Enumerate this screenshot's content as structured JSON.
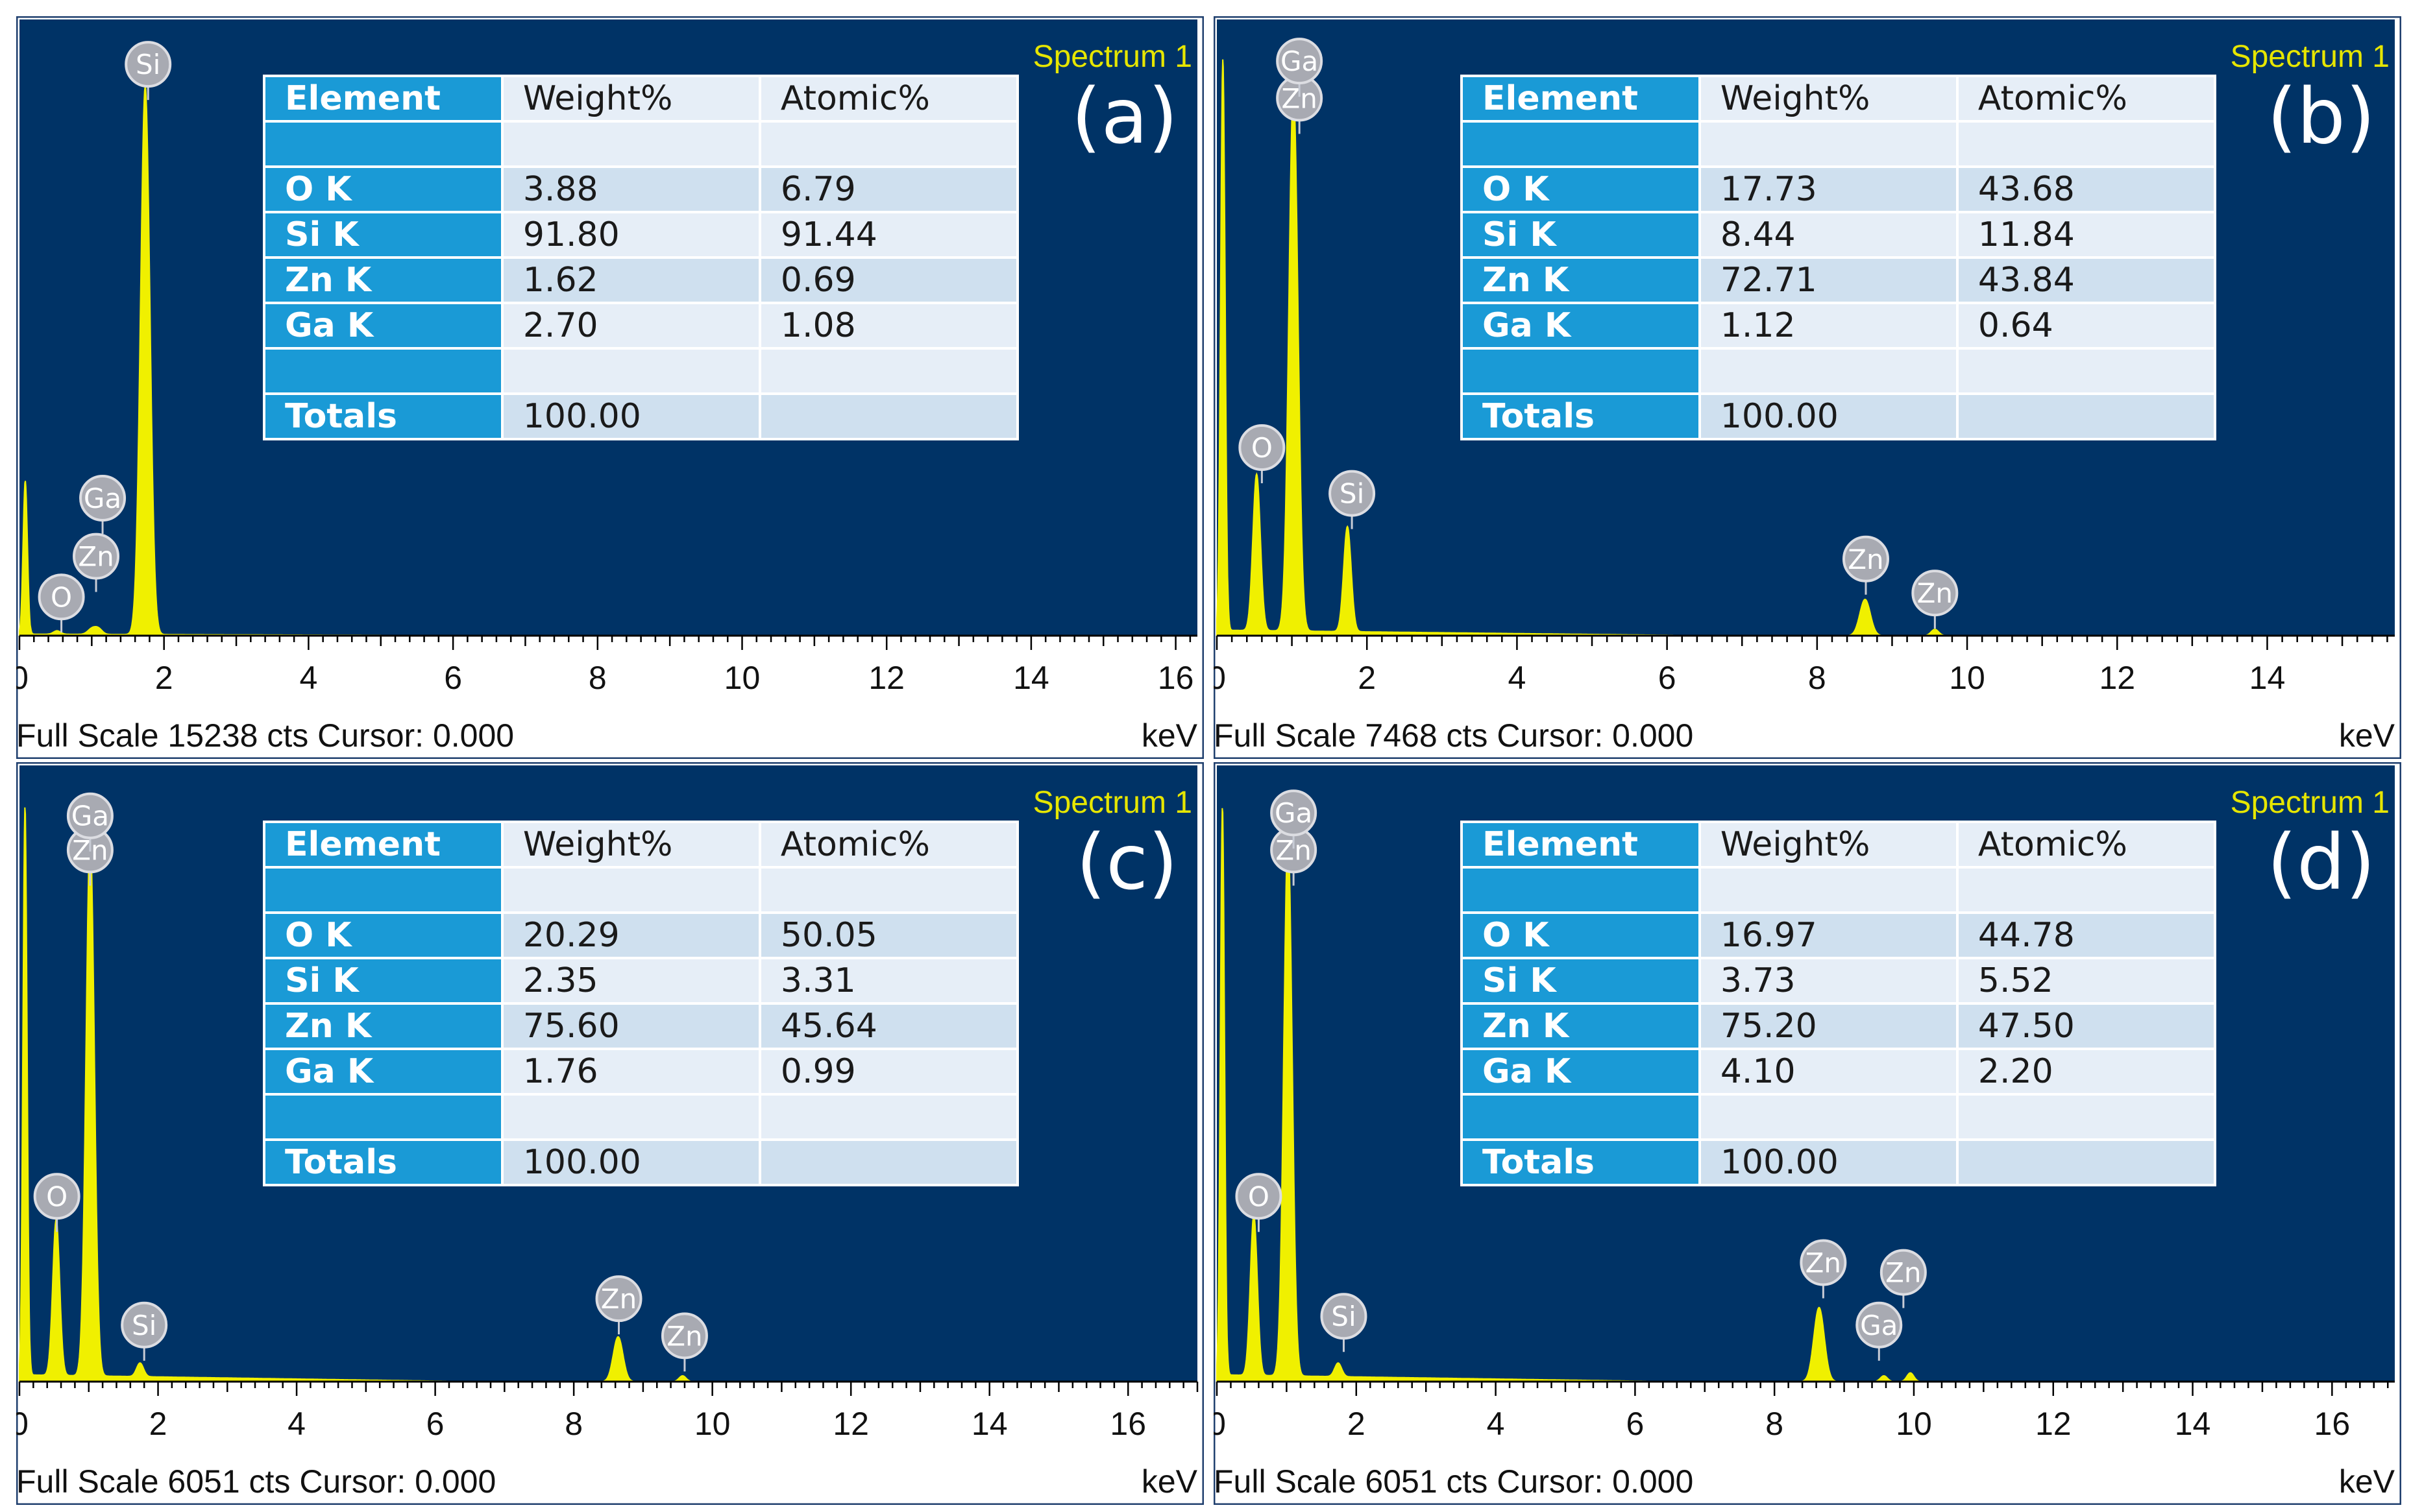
{
  "figure": {
    "table_headers": [
      "Element",
      "Weight%",
      "Atomic%"
    ],
    "totals_label": "Totals"
  },
  "chart_data": [
    {
      "type": "line",
      "panel_label": "(a)",
      "spectrum_label": "Spectrum 1",
      "footer": "Full Scale 15238 cts Cursor: 0.000",
      "xlabel": "keV",
      "xlim": [
        0,
        16.3
      ],
      "ylim": [
        0,
        15238
      ],
      "x_ticks": [
        0,
        2,
        4,
        6,
        8,
        10,
        12,
        14,
        16
      ],
      "x_tick_labels": [
        "0",
        "2",
        "4",
        "6",
        "8",
        "10",
        "12",
        "14",
        "16"
      ],
      "peaks": [
        {
          "x": 0.08,
          "y": 4000,
          "width": 0.03
        },
        {
          "x": 0.52,
          "y": 90,
          "width": 0.05
        },
        {
          "x": 1.01,
          "y": 160,
          "width": 0.06
        },
        {
          "x": 1.1,
          "y": 120,
          "width": 0.05
        },
        {
          "x": 1.74,
          "y": 14150,
          "width": 0.065
        }
      ],
      "baseline": 40,
      "peak_markers": [
        {
          "label": "O",
          "x": 0.58,
          "y": 1000
        },
        {
          "label": "Zn",
          "x": 1.06,
          "y": 2050
        },
        {
          "label": "Ga",
          "x": 1.15,
          "y": 3550
        },
        {
          "label": "Si",
          "x": 1.78,
          "y": 14750
        }
      ],
      "table": [
        {
          "element": "O K",
          "weight": "3.88",
          "atomic": "6.79"
        },
        {
          "element": "Si K",
          "weight": "91.80",
          "atomic": "91.44"
        },
        {
          "element": "Zn K",
          "weight": "1.62",
          "atomic": "0.69"
        },
        {
          "element": "Ga K",
          "weight": "2.70",
          "atomic": "1.08"
        }
      ],
      "total_weight": "100.00"
    },
    {
      "type": "line",
      "panel_label": "(b)",
      "spectrum_label": "Spectrum 1",
      "footer": "Full Scale 7468 cts Cursor: 0.000",
      "xlabel": "keV",
      "xlim": [
        0,
        15.7
      ],
      "ylim": [
        0,
        7468
      ],
      "x_ticks": [
        0,
        2,
        4,
        6,
        8,
        10,
        12,
        14
      ],
      "x_tick_labels": [
        "0",
        "2",
        "4",
        "6",
        "8",
        "10",
        "12",
        "14"
      ],
      "peaks": [
        {
          "x": 0.08,
          "y": 7300,
          "width": 0.03
        },
        {
          "x": 0.53,
          "y": 1980,
          "width": 0.05
        },
        {
          "x": 1.02,
          "y": 6900,
          "width": 0.06
        },
        {
          "x": 1.74,
          "y": 1330,
          "width": 0.05
        },
        {
          "x": 8.64,
          "y": 460,
          "width": 0.07
        },
        {
          "x": 9.57,
          "y": 80,
          "width": 0.05
        }
      ],
      "baseline": 70,
      "peak_markers": [
        {
          "label": "O",
          "x": 0.6,
          "y": 2380
        },
        {
          "label": "Zn",
          "x": 1.1,
          "y": 6800
        },
        {
          "label": "Ga",
          "x": 1.1,
          "y": 7270
        },
        {
          "label": "Si",
          "x": 1.8,
          "y": 1800
        },
        {
          "label": "Zn",
          "x": 8.65,
          "y": 970
        },
        {
          "label": "Zn",
          "x": 9.57,
          "y": 540
        }
      ],
      "table": [
        {
          "element": "O K",
          "weight": "17.73",
          "atomic": "43.68"
        },
        {
          "element": "Si K",
          "weight": "8.44",
          "atomic": "11.84"
        },
        {
          "element": "Zn K",
          "weight": "72.71",
          "atomic": "43.84"
        },
        {
          "element": "Ga K",
          "weight": "1.12",
          "atomic": "0.64"
        }
      ],
      "total_weight": "100.00"
    },
    {
      "type": "line",
      "panel_label": "(c)",
      "spectrum_label": "Spectrum 1",
      "footer": "Full Scale 6051 cts Cursor: 0.000",
      "xlabel": "keV",
      "xlim": [
        0,
        17
      ],
      "ylim": [
        0,
        6051
      ],
      "x_ticks": [
        0,
        2,
        4,
        6,
        8,
        10,
        12,
        14,
        16
      ],
      "x_tick_labels": [
        "0",
        "2",
        "4",
        "6",
        "8",
        "10",
        "12",
        "14",
        "16"
      ],
      "peaks": [
        {
          "x": 0.08,
          "y": 5900,
          "width": 0.03
        },
        {
          "x": 0.53,
          "y": 1600,
          "width": 0.05
        },
        {
          "x": 1.02,
          "y": 5550,
          "width": 0.06
        },
        {
          "x": 1.74,
          "y": 140,
          "width": 0.05
        },
        {
          "x": 8.64,
          "y": 460,
          "width": 0.07
        },
        {
          "x": 9.57,
          "y": 60,
          "width": 0.05
        }
      ],
      "baseline": 70,
      "peak_markers": [
        {
          "label": "O",
          "x": 0.54,
          "y": 1900
        },
        {
          "label": "Zn",
          "x": 1.02,
          "y": 5450
        },
        {
          "label": "Ga",
          "x": 1.02,
          "y": 5800
        },
        {
          "label": "Si",
          "x": 1.8,
          "y": 580
        },
        {
          "label": "Zn",
          "x": 8.65,
          "y": 850
        },
        {
          "label": "Zn",
          "x": 9.6,
          "y": 470
        }
      ],
      "table": [
        {
          "element": "O K",
          "weight": "20.29",
          "atomic": "50.05"
        },
        {
          "element": "Si K",
          "weight": "2.35",
          "atomic": "3.31"
        },
        {
          "element": "Zn K",
          "weight": "75.60",
          "atomic": "45.64"
        },
        {
          "element": "Ga K",
          "weight": "1.76",
          "atomic": "0.99"
        }
      ],
      "total_weight": "100.00"
    },
    {
      "type": "line",
      "panel_label": "(d)",
      "spectrum_label": "Spectrum 1",
      "footer": "Full Scale 6051 cts Cursor: 0.000",
      "xlabel": "keV",
      "xlim": [
        0,
        16.9
      ],
      "ylim": [
        0,
        6051
      ],
      "x_ticks": [
        0,
        2,
        4,
        6,
        8,
        10,
        12,
        14,
        16
      ],
      "x_tick_labels": [
        "0",
        "2",
        "4",
        "6",
        "8",
        "10",
        "12",
        "14",
        "16"
      ],
      "peaks": [
        {
          "x": 0.08,
          "y": 5900,
          "width": 0.03
        },
        {
          "x": 0.53,
          "y": 1650,
          "width": 0.05
        },
        {
          "x": 1.02,
          "y": 5550,
          "width": 0.06
        },
        {
          "x": 1.74,
          "y": 140,
          "width": 0.05
        },
        {
          "x": 8.64,
          "y": 760,
          "width": 0.075
        },
        {
          "x": 9.57,
          "y": 60,
          "width": 0.05
        },
        {
          "x": 9.95,
          "y": 90,
          "width": 0.05
        }
      ],
      "baseline": 70,
      "peak_markers": [
        {
          "label": "O",
          "x": 0.6,
          "y": 1900
        },
        {
          "label": "Zn",
          "x": 1.1,
          "y": 5450
        },
        {
          "label": "Ga",
          "x": 1.1,
          "y": 5830
        },
        {
          "label": "Si",
          "x": 1.82,
          "y": 670
        },
        {
          "label": "Zn",
          "x": 8.7,
          "y": 1220
        },
        {
          "label": "Ga",
          "x": 9.5,
          "y": 580
        },
        {
          "label": "Zn",
          "x": 9.85,
          "y": 1120
        }
      ],
      "table": [
        {
          "element": "O K",
          "weight": "16.97",
          "atomic": "44.78"
        },
        {
          "element": "Si K",
          "weight": "3.73",
          "atomic": "5.52"
        },
        {
          "element": "Zn K",
          "weight": "75.20",
          "atomic": "47.50"
        },
        {
          "element": "Ga K",
          "weight": "4.10",
          "atomic": "2.20"
        }
      ],
      "total_weight": "100.00"
    }
  ]
}
